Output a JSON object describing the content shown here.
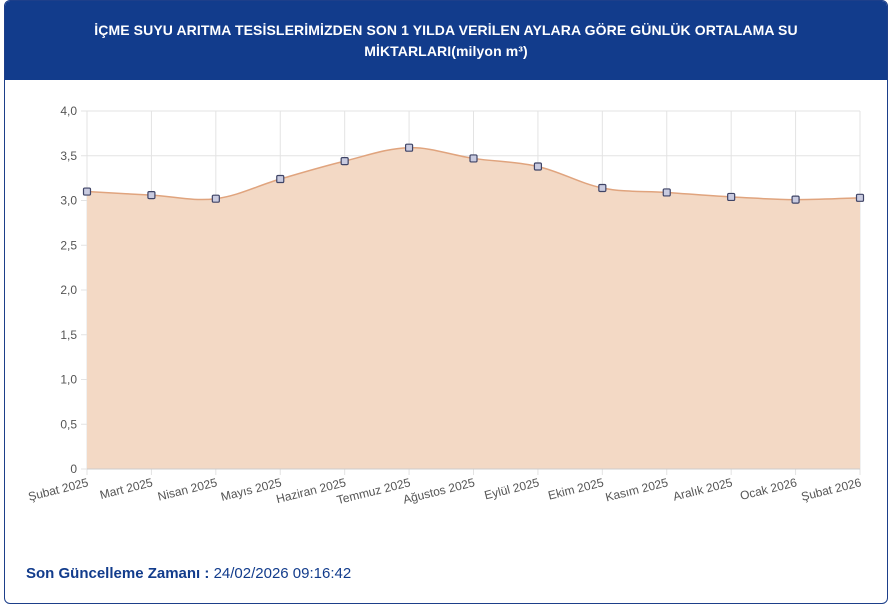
{
  "header": {
    "title": "İÇME SUYU ARITMA TESİSLERİMİZDEN SON 1 YILDA VERİLEN AYLARA GÖRE GÜNLÜK ORTALAMA SU MİKTARLARI(milyon m³)"
  },
  "footer": {
    "label": "Son Güncelleme Zamanı :",
    "value": "24/02/2026 09:16:42"
  },
  "chart_data": {
    "type": "area",
    "title": "İÇME SUYU ARITMA TESİSLERİMİZDEN SON 1 YILDA VERİLEN AYLARA GÖRE GÜNLÜK ORTALAMA SU MİKTARLARI(milyon m³)",
    "xlabel": "",
    "ylabel": "",
    "categories": [
      "Şubat 2025",
      "Mart 2025",
      "Nisan 2025",
      "Mayıs 2025",
      "Haziran 2025",
      "Temmuz 2025",
      "Ağustos 2025",
      "Eylül 2025",
      "Ekim 2025",
      "Kasım 2025",
      "Aralık 2025",
      "Ocak 2026",
      "Şubat 2026"
    ],
    "values": [
      3.1,
      3.06,
      3.02,
      3.24,
      3.44,
      3.59,
      3.47,
      3.38,
      3.14,
      3.09,
      3.04,
      3.01,
      3.03
    ],
    "ylim": [
      0,
      4.0
    ],
    "yticks": [
      "0",
      "0,5",
      "1,0",
      "1,5",
      "2,0",
      "2,5",
      "3,0",
      "3,5",
      "4,0"
    ],
    "grid": true,
    "legend": "none",
    "colors": {
      "fill": "#f3d9c5",
      "line": "#e0a47e",
      "point_fill": "#c9cbe0",
      "point_stroke": "#3f4466",
      "grid": "#e3e3e3",
      "axis": "#cccccc"
    }
  }
}
